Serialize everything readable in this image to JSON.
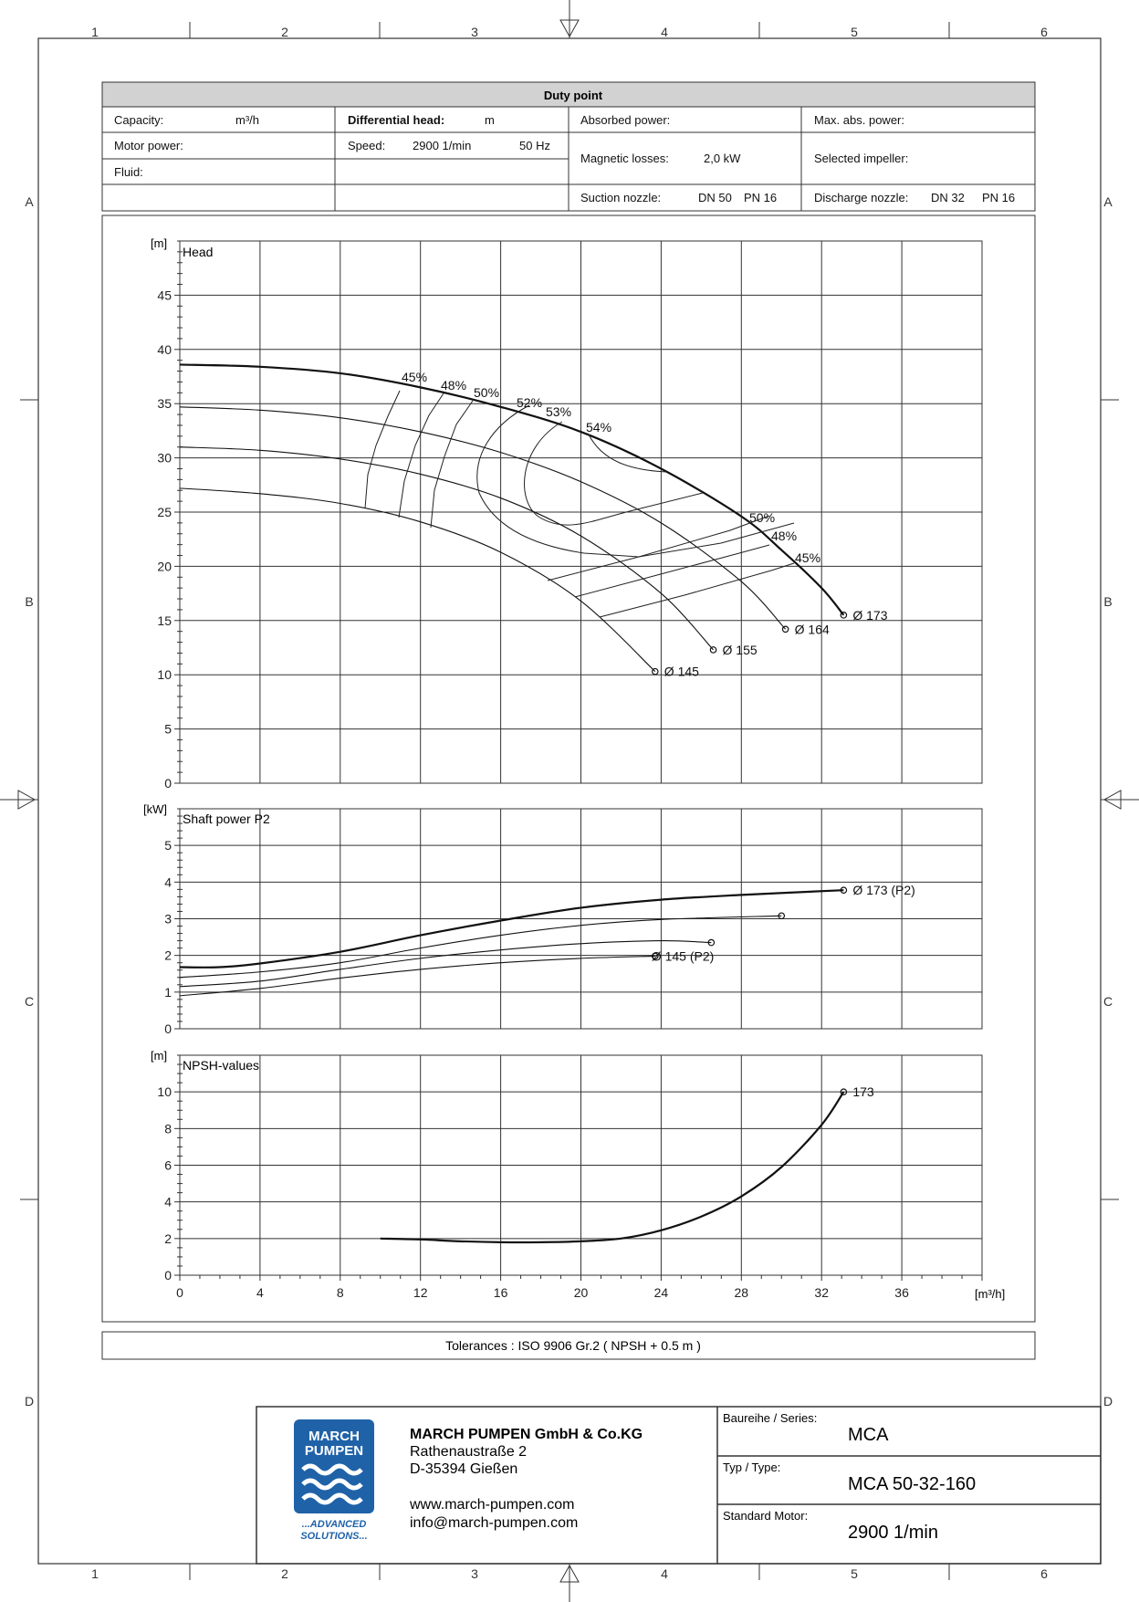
{
  "frame": {
    "columns": [
      "1",
      "2",
      "3",
      "4",
      "5",
      "6"
    ],
    "rows": [
      "A",
      "B",
      "C",
      "D"
    ]
  },
  "duty_point": {
    "title": "Duty point",
    "capacity_label": "Capacity:",
    "capacity_unit": "m³/h",
    "diff_head_label": "Differential head:",
    "diff_head_unit": "m",
    "absorbed_power_label": "Absorbed power:",
    "max_abs_power_label": "Max. abs. power:",
    "motor_power_label": "Motor power:",
    "speed_label": "Speed:",
    "speed_value": "2900 1/min",
    "freq_value": "50 Hz",
    "magnetic_losses_label": "Magnetic losses:",
    "magnetic_losses_value": "2,0 kW",
    "selected_impeller_label": "Selected impeller:",
    "fluid_label": "Fluid:",
    "suction_label": "Suction nozzle:",
    "suction_dn": "DN 50",
    "suction_pn": "PN 16",
    "discharge_label": "Discharge nozzle:",
    "discharge_dn": "DN 32",
    "discharge_pn": "PN 16"
  },
  "tolerances": "Tolerances :  ISO 9906 Gr.2 ( NPSH + 0.5 m )",
  "title_block": {
    "logo_line1": "MARCH",
    "logo_line2": "PUMPEN",
    "logo_tag1": "...ADVANCED",
    "logo_tag2": "SOLUTIONS...",
    "company": "MARCH PUMPEN GmbH & Co.KG",
    "street": "Rathenaustraße 2",
    "city": "D-35394 Gießen",
    "web": "www.march-pumpen.com",
    "email": "info@march-pumpen.com",
    "series_label": "Baureihe / Series:",
    "series_value": "MCA",
    "type_label": "Typ / Type:",
    "type_value": "MCA 50-32-160",
    "motor_label": "Standard Motor:",
    "motor_value": "2900 1/min"
  },
  "chart_data": [
    {
      "type": "line",
      "title": "Head",
      "ylabel": "[m]",
      "xlim": [
        0,
        40
      ],
      "ylim": [
        0,
        50
      ],
      "y_ticks": [
        0,
        5,
        10,
        15,
        20,
        25,
        30,
        35,
        40,
        45
      ],
      "grid": true,
      "series": [
        {
          "name": "Ø 173",
          "x": [
            0,
            4,
            8,
            12,
            16,
            20,
            24,
            28,
            30,
            32,
            33.1
          ],
          "y": [
            38.6,
            38.4,
            37.8,
            36.5,
            34.7,
            32.4,
            29.0,
            24.6,
            21.5,
            18.0,
            15.5
          ]
        },
        {
          "name": "Ø 164",
          "x": [
            0,
            4,
            8,
            12,
            16,
            20,
            24,
            28,
            30.2
          ],
          "y": [
            34.7,
            34.4,
            33.7,
            32.4,
            30.5,
            27.8,
            24.0,
            18.6,
            14.2
          ]
        },
        {
          "name": "Ø 155",
          "x": [
            0,
            4,
            8,
            12,
            16,
            20,
            24,
            26.6
          ],
          "y": [
            31.0,
            30.7,
            29.9,
            28.5,
            26.3,
            22.8,
            17.5,
            12.3
          ]
        },
        {
          "name": "Ø 145",
          "x": [
            0,
            4,
            8,
            12,
            16,
            20,
            23.7
          ],
          "y": [
            27.2,
            26.7,
            25.8,
            24.1,
            21.3,
            16.8,
            10.3
          ]
        }
      ],
      "efficiency_labels": [
        "45%",
        "48%",
        "50%",
        "52%",
        "53%",
        "54%",
        "50%",
        "48%",
        "45%"
      ]
    },
    {
      "type": "line",
      "title": "Shaft power P2",
      "ylabel": "[kW]",
      "xlim": [
        0,
        40
      ],
      "ylim": [
        0,
        6
      ],
      "y_ticks": [
        0,
        1,
        2,
        3,
        4,
        5
      ],
      "grid": true,
      "series": [
        {
          "name": "Ø 173 (P2)",
          "x": [
            0,
            2,
            4,
            8,
            12,
            16,
            20,
            24,
            28,
            33.1
          ],
          "y": [
            1.68,
            1.68,
            1.78,
            2.1,
            2.55,
            2.95,
            3.3,
            3.52,
            3.65,
            3.78
          ]
        },
        {
          "name": "Ø 164",
          "x": [
            0,
            4,
            8,
            12,
            16,
            20,
            24,
            30
          ],
          "y": [
            1.4,
            1.55,
            1.8,
            2.2,
            2.55,
            2.82,
            2.98,
            3.08
          ]
        },
        {
          "name": "Ø 155",
          "x": [
            0,
            4,
            8,
            12,
            16,
            20,
            24,
            26.5
          ],
          "y": [
            1.15,
            1.3,
            1.62,
            1.92,
            2.15,
            2.32,
            2.4,
            2.35
          ]
        },
        {
          "name": "Ø 145 (P2)",
          "x": [
            0,
            4,
            8,
            12,
            16,
            20,
            23.7
          ],
          "y": [
            0.9,
            1.1,
            1.38,
            1.62,
            1.8,
            1.92,
            1.98
          ]
        }
      ]
    },
    {
      "type": "line",
      "title": "NPSH-values",
      "ylabel": "[m]",
      "xlabel": "[m³/h]",
      "xlim": [
        0,
        40
      ],
      "ylim": [
        0,
        12
      ],
      "x_ticks": [
        0,
        4,
        8,
        12,
        16,
        20,
        24,
        28,
        32,
        36
      ],
      "y_ticks": [
        0,
        2,
        4,
        6,
        8,
        10
      ],
      "grid": true,
      "series": [
        {
          "name": "173",
          "x": [
            10,
            12,
            14,
            16,
            18,
            20,
            22,
            24,
            26,
            28,
            30,
            32,
            33.1
          ],
          "y": [
            2.0,
            1.95,
            1.85,
            1.8,
            1.8,
            1.85,
            2.0,
            2.45,
            3.2,
            4.3,
            5.9,
            8.2,
            10.0
          ]
        }
      ]
    }
  ]
}
